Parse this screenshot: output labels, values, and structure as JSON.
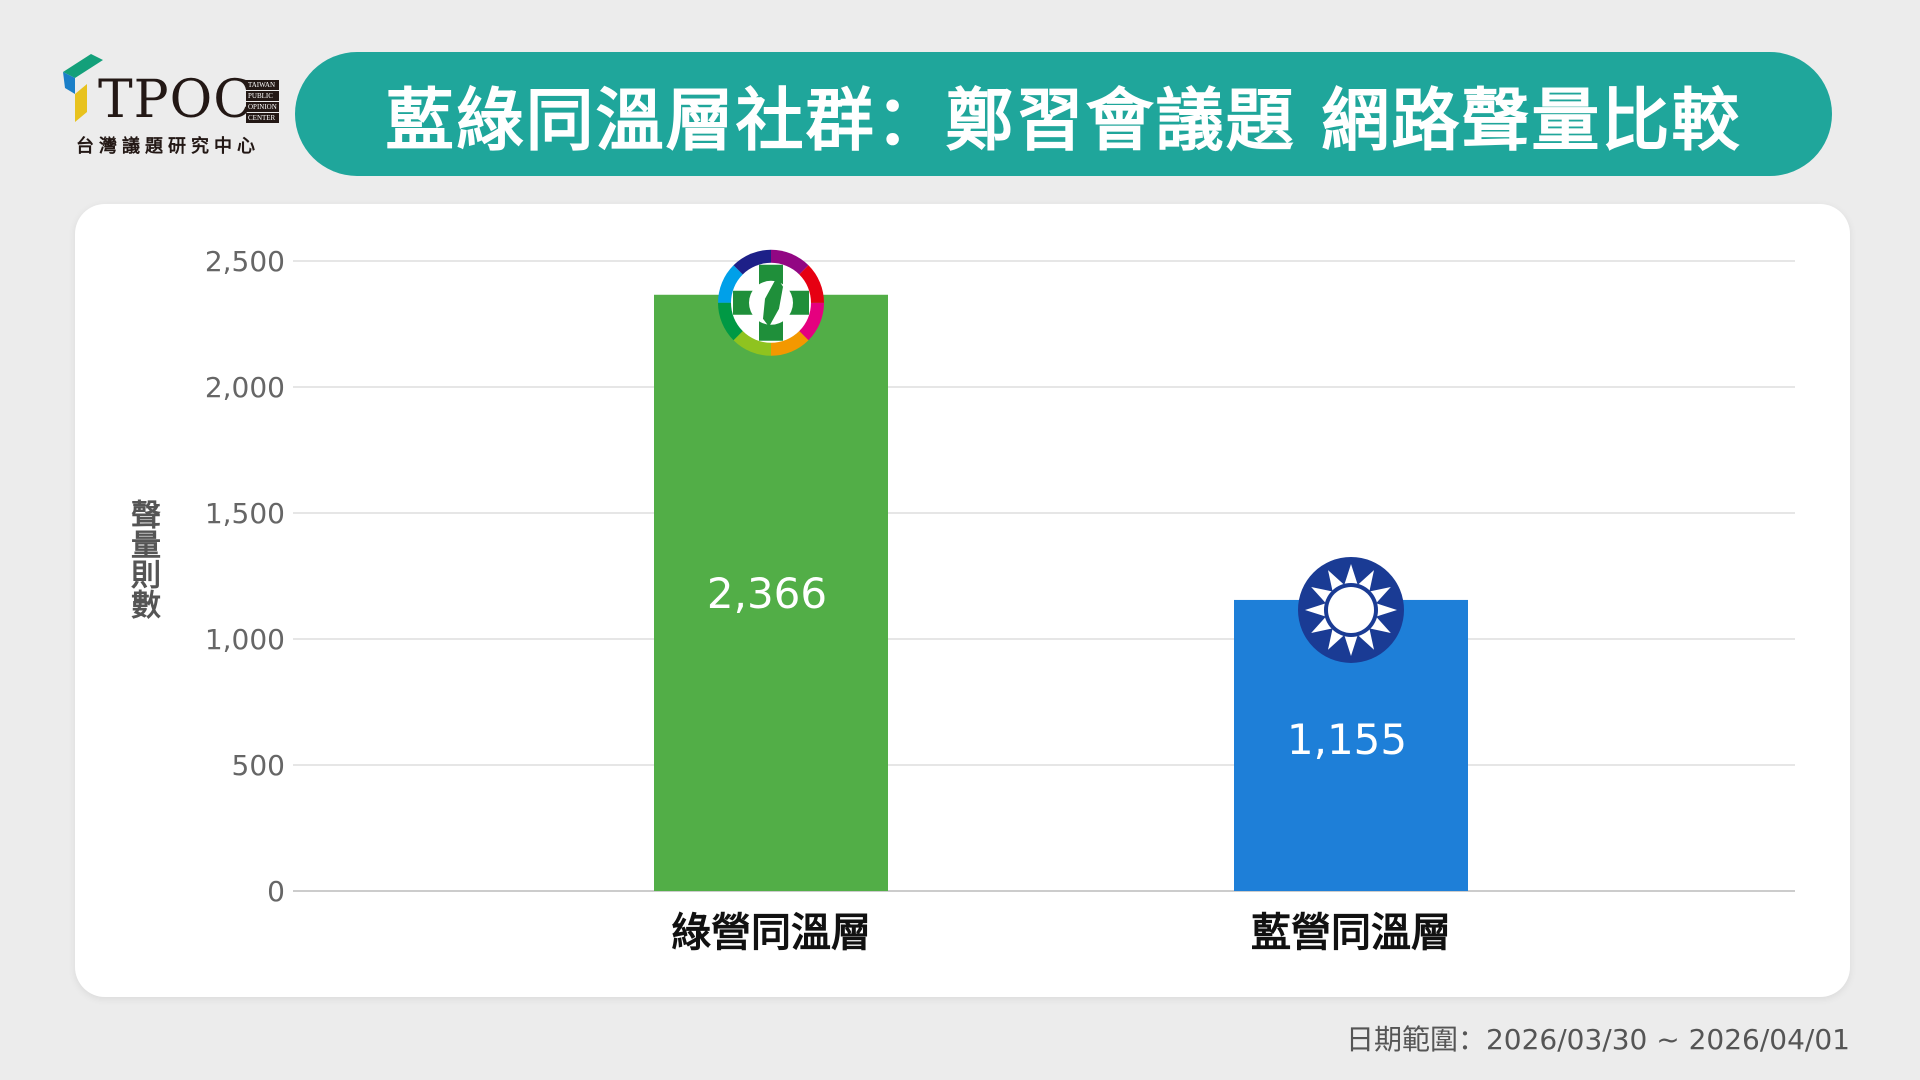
{
  "logo": {
    "name": "TPOC",
    "subtitle": "台灣議題研究中心",
    "small_lines": [
      "TAIWAN",
      "PUBLIC",
      "OPINION",
      "CENTER"
    ]
  },
  "title": "藍綠同溫層社群：鄭習會議題 網路聲量比較",
  "chart_data": {
    "type": "bar",
    "categories": [
      "綠營同溫層",
      "藍營同溫層"
    ],
    "values": [
      2366,
      1155
    ],
    "data_labels": [
      "2,366",
      "1,155"
    ],
    "colors": [
      "#52ae47",
      "#1e7fd8"
    ],
    "bar_icons": [
      "dpp-emblem-icon",
      "kmt-emblem-icon"
    ],
    "ylabel": "聲量則數",
    "ylim": [
      0,
      2500
    ],
    "yticks": [
      0,
      500,
      1000,
      1500,
      2000,
      2500
    ],
    "ytick_labels": [
      "0",
      "500",
      "1,000",
      "1,500",
      "2,000",
      "2,500"
    ],
    "grid": true
  },
  "footer": {
    "date_range": "日期範圍：2026/03/30 ~ 2026/04/01"
  }
}
